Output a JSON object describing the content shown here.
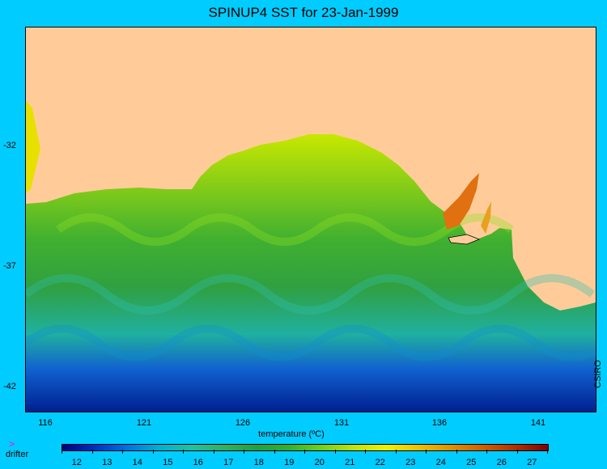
{
  "title": "SPINUP4 SST for 23-Jan-1999",
  "map": {
    "lon_ticks": [
      "116",
      "121",
      "126",
      "131",
      "136",
      "141"
    ],
    "lat_ticks": [
      "-32",
      "-37",
      "-42"
    ],
    "credit": "CSIRO",
    "land_color": "#ffcc99",
    "background_color": "#00ccff"
  },
  "legend": {
    "title": "temperature (ºC)",
    "labels": [
      "12",
      "13",
      "14",
      "15",
      "16",
      "17",
      "18",
      "19",
      "20",
      "21",
      "22",
      "23",
      "24",
      "25",
      "26",
      "27"
    ],
    "colors": [
      "#000080",
      "#0030c0",
      "#0070e0",
      "#00b0d0",
      "#20c0a0",
      "#30b060",
      "#20a040",
      "#30b030",
      "#70d020",
      "#c0e010",
      "#f0f000",
      "#f0c000",
      "#e09000",
      "#d06000",
      "#b03000",
      "#800000"
    ],
    "drifter_marker": ">",
    "drifter_label": "drifter"
  }
}
